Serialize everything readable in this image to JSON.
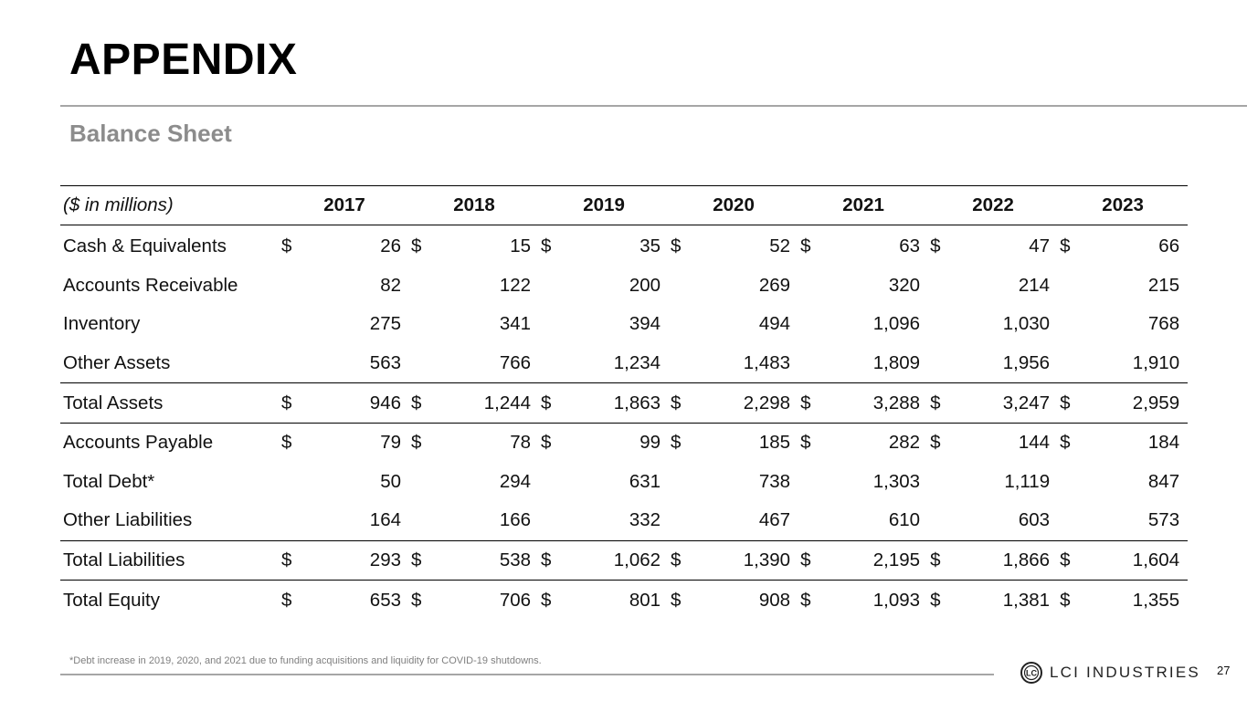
{
  "slide": {
    "title": "APPENDIX",
    "subtitle": "Balance Sheet",
    "footnote": "*Debt increase in 2019, 2020, and 2021 due to funding acquisitions and liquidity for COVID-19 shutdowns.",
    "page_number": "27",
    "brand": {
      "name": "LCI INDUSTRIES",
      "logo_icon": "lci-logo-icon",
      "logo_text": "LC"
    }
  },
  "table": {
    "units_label": "($ in millions)",
    "years": [
      "2017",
      "2018",
      "2019",
      "2020",
      "2021",
      "2022",
      "2023"
    ],
    "rows": [
      {
        "label": "Cash & Equivalents",
        "currency": "$",
        "rule_below": false,
        "values": [
          "26",
          "15",
          "35",
          "52",
          "63",
          "47",
          "66"
        ]
      },
      {
        "label": "Accounts Receivable",
        "currency": "",
        "rule_below": false,
        "values": [
          "82",
          "122",
          "200",
          "269",
          "320",
          "214",
          "215"
        ]
      },
      {
        "label": "Inventory",
        "currency": "",
        "rule_below": false,
        "values": [
          "275",
          "341",
          "394",
          "494",
          "1,096",
          "1,030",
          "768"
        ]
      },
      {
        "label": "Other Assets",
        "currency": "",
        "rule_below": true,
        "values": [
          "563",
          "766",
          "1,234",
          "1,483",
          "1,809",
          "1,956",
          "1,910"
        ]
      },
      {
        "label": "Total Assets",
        "currency": "$",
        "rule_below": true,
        "values": [
          "946",
          "1,244",
          "1,863",
          "2,298",
          "3,288",
          "3,247",
          "2,959"
        ]
      },
      {
        "label": "Accounts Payable",
        "currency": "$",
        "rule_below": false,
        "values": [
          "79",
          "78",
          "99",
          "185",
          "282",
          "144",
          "184"
        ]
      },
      {
        "label": "Total Debt*",
        "currency": "",
        "rule_below": false,
        "values": [
          "50",
          "294",
          "631",
          "738",
          "1,303",
          "1,119",
          "847"
        ]
      },
      {
        "label": "Other Liabilities",
        "currency": "",
        "rule_below": true,
        "values": [
          "164",
          "166",
          "332",
          "467",
          "610",
          "603",
          "573"
        ]
      },
      {
        "label": "Total Liabilities",
        "currency": "$",
        "rule_below": true,
        "values": [
          "293",
          "538",
          "1,062",
          "1,390",
          "2,195",
          "1,866",
          "1,604"
        ]
      },
      {
        "label": "Total Equity",
        "currency": "$",
        "rule_below": false,
        "values": [
          "653",
          "706",
          "801",
          "908",
          "1,093",
          "1,381",
          "1,355"
        ]
      }
    ]
  }
}
